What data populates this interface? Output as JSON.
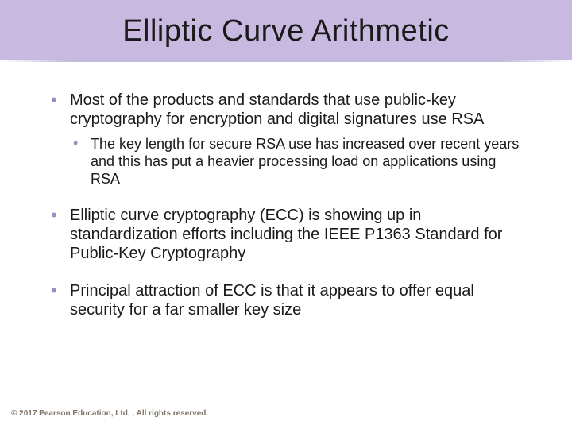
{
  "colors": {
    "header_bg": "#c7b9e0",
    "title_color": "#1a1a1a",
    "divider_color": "#9d8bc4",
    "body_text": "#1a1a1a",
    "bullet_outer": "#9d8bc4",
    "bullet_inner": "#9d8bc4",
    "footer_text": "#7f7264",
    "page_bg": "#ffffff"
  },
  "typography": {
    "title_fontsize": 38,
    "outer_fontsize": 20,
    "inner_fontsize": 18,
    "footer_fontsize": 10
  },
  "title": "Elliptic Curve Arithmetic",
  "bullets": [
    {
      "text": "Most of the products and standards that use public-key cryptography for encryption and digital signatures use RSA",
      "sub": [
        {
          "text": "The key length for secure RSA use has increased over recent years and this has put a heavier processing load on applications using RSA"
        }
      ]
    },
    {
      "text": "Elliptic curve cryptography (ECC) is showing up in standardization efforts including the IEEE P1363 Standard for Public-Key Cryptography",
      "sub": []
    },
    {
      "text": "Principal attraction of ECC is that it appears to offer equal security for a far smaller key size",
      "sub": []
    }
  ],
  "footer": "© 2017 Pearson Education, Ltd. , All rights reserved."
}
